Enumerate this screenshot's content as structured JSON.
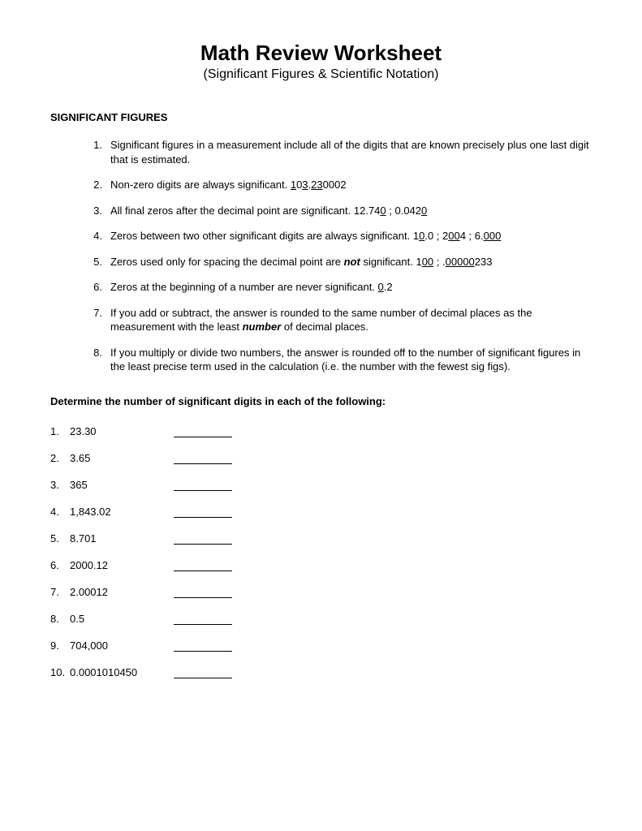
{
  "title": "Math Review Worksheet",
  "subtitle": "(Significant Figures & Scientific Notation)",
  "section_heading": "SIGNIFICANT FIGURES",
  "rules": [
    {
      "num": "1.",
      "segs": [
        {
          "t": "Significant figures in a measurement include all of the digits that are known precisely plus one last digit that is estimated."
        }
      ]
    },
    {
      "num": "2.",
      "segs": [
        {
          "t": "Non-zero digits are always significant.     "
        },
        {
          "t": "1",
          "u": true
        },
        {
          "t": "0"
        },
        {
          "t": "3",
          "u": true
        },
        {
          "t": "."
        },
        {
          "t": "23",
          "u": true
        },
        {
          "t": "0002"
        }
      ]
    },
    {
      "num": "3.",
      "segs": [
        {
          "t": "All final zeros after the decimal point are significant.     12.74"
        },
        {
          "t": "0",
          "u": true
        },
        {
          "t": "  ;   0.042"
        },
        {
          "t": "0",
          "u": true
        }
      ]
    },
    {
      "num": "4.",
      "segs": [
        {
          "t": "Zeros between two other significant digits are always significant.     1"
        },
        {
          "t": "0",
          "u": true
        },
        {
          "t": ".0  ;  2"
        },
        {
          "t": "00",
          "u": true
        },
        {
          "t": "4  ;  6."
        },
        {
          "t": "000",
          "u": true
        }
      ]
    },
    {
      "num": "5.",
      "segs": [
        {
          "t": "Zeros used only for spacing the decimal point are "
        },
        {
          "t": "not",
          "bi": true
        },
        {
          "t": " significant.     1"
        },
        {
          "t": "00",
          "u": true
        },
        {
          "t": "  ;  ."
        },
        {
          "t": "00000",
          "u": true
        },
        {
          "t": "233"
        }
      ]
    },
    {
      "num": "6.",
      "segs": [
        {
          "t": "Zeros at the beginning of a number are never significant.    "
        },
        {
          "t": "0",
          "u": true
        },
        {
          "t": ".2"
        }
      ]
    },
    {
      "num": "7.",
      "segs": [
        {
          "t": "If you add or subtract, the answer is rounded to the same number of decimal places as the measurement with the least "
        },
        {
          "t": "number",
          "bi": true
        },
        {
          "t": " of decimal places."
        }
      ]
    },
    {
      "num": "8.",
      "segs": [
        {
          "t": "If you multiply or divide two numbers, the answer is rounded off to the number of significant figures in the least precise term used in the calculation (i.e. the number with the fewest sig figs)."
        }
      ]
    }
  ],
  "instruction": "Determine the number of significant digits in each of the following:",
  "problems": [
    {
      "num": "1.",
      "val": "23.30"
    },
    {
      "num": "2.",
      "val": "3.65"
    },
    {
      "num": "3.",
      "val": "365"
    },
    {
      "num": "4.",
      "val": "1,843.02"
    },
    {
      "num": "5.",
      "val": "8.701"
    },
    {
      "num": "6.",
      "val": "2000.12"
    },
    {
      "num": "7.",
      "val": "2.00012"
    },
    {
      "num": "8.",
      "val": "0.5"
    },
    {
      "num": "9.",
      "val": "704,000"
    },
    {
      "num": "10.",
      "val": "0.0001010450"
    }
  ]
}
